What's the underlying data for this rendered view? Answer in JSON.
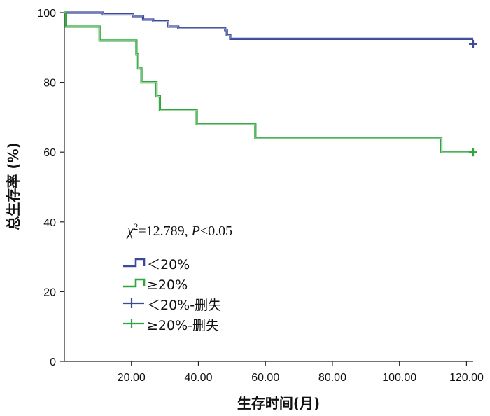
{
  "chart_data": {
    "type": "line",
    "subtype": "kaplan-meier",
    "xlabel": "生存时间(月)",
    "ylabel": "总生存率 (%)",
    "xlim": [
      0,
      122
    ],
    "ylim": [
      0,
      100
    ],
    "x_ticks": [
      20,
      40,
      60,
      80,
      100,
      120
    ],
    "x_tick_labels": [
      "20.00",
      "40.00",
      "60.00",
      "80.00",
      "100.00",
      "120.00"
    ],
    "y_ticks": [
      0,
      20,
      40,
      60,
      80,
      100
    ],
    "y_tick_labels": [
      "0",
      "20",
      "40",
      "60",
      "80",
      "100"
    ],
    "grid": false,
    "legend_position": "left-middle",
    "annotation": {
      "chi_symbol": "χ",
      "chi_sup": "2",
      "chi_value": "=12.789, ",
      "p_symbol": "P",
      "p_value": "<0.05"
    },
    "series": [
      {
        "name": "＜20%",
        "censor_name": "＜20%-删失",
        "color": "#3a4a9a",
        "steps": [
          [
            0,
            100
          ],
          [
            11.5,
            99.5
          ],
          [
            20.5,
            99
          ],
          [
            23.5,
            98
          ],
          [
            26.5,
            97.5
          ],
          [
            31,
            96
          ],
          [
            34,
            95.5
          ],
          [
            48,
            95
          ],
          [
            48.5,
            93.5
          ],
          [
            49.5,
            92.5
          ],
          [
            122,
            92.5
          ]
        ],
        "censor": [
          [
            122,
            91
          ]
        ]
      },
      {
        "name": "≥20%",
        "censor_name": "≥20%-删失",
        "color": "#2fa63a",
        "steps": [
          [
            0,
            100
          ],
          [
            0.5,
            96
          ],
          [
            10.5,
            92
          ],
          [
            21.5,
            88
          ],
          [
            22,
            84
          ],
          [
            23,
            80
          ],
          [
            27.5,
            76
          ],
          [
            28.5,
            72
          ],
          [
            39.5,
            68
          ],
          [
            57,
            64
          ],
          [
            112.5,
            60
          ],
          [
            122,
            60
          ]
        ],
        "censor": [
          [
            122,
            60
          ]
        ]
      }
    ]
  }
}
